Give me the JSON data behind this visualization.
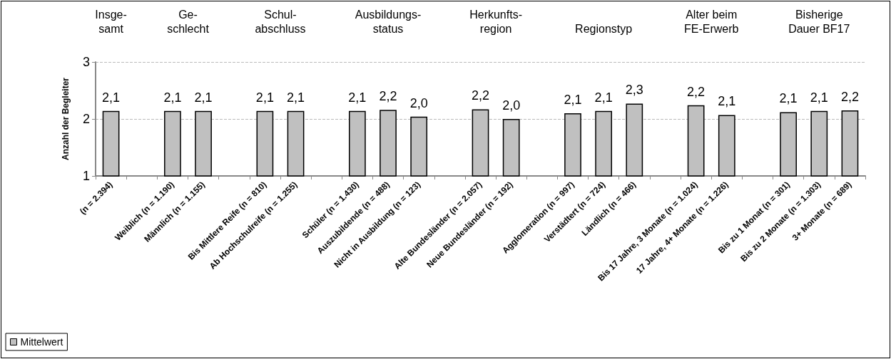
{
  "chart_data": {
    "type": "bar",
    "ylabel": "Anzahl der Begleiter",
    "categories": [
      "(n = 2.394)",
      null,
      "Weiblich (n = 1.190)",
      "Männlich (n = 1.155)",
      null,
      "Bis Mittlere Reife (n = 810)",
      "Ab Hochschulreife (n = 1.255)",
      null,
      "Schüler (n = 1.430)",
      "Auszubildende (n = 488)",
      "Nicht in Ausbildung (n = 123)",
      null,
      "Alte Bundesländer (n = 2.057)",
      "Neue Bundesländer (n = 192)",
      null,
      "Agglomeration (n = 997)",
      "Verstädtert (n = 724)",
      "Ländlich (n = 466)",
      null,
      "Bis 17 Jahre, 3 Monate (n = 1.024)",
      "17 Jahre, 4+ Monate (n = 1.226)",
      null,
      "Bis zu 1 Monat (n = 301)",
      "Bis zu 2 Monate (n = 1.303)",
      "3+ Monate (n = 689)"
    ],
    "series": [
      {
        "name": "Mittelwert",
        "color": "#c0c0c0",
        "values": [
          2.14,
          null,
          2.14,
          2.14,
          null,
          2.14,
          2.14,
          null,
          2.14,
          2.16,
          2.04,
          null,
          2.17,
          2.0,
          null,
          2.1,
          2.14,
          2.27,
          null,
          2.24,
          2.07,
          null,
          2.12,
          2.14,
          2.15
        ],
        "value_labels": [
          "2,1",
          null,
          "2,1",
          "2,1",
          null,
          "2,1",
          "2,1",
          null,
          "2,1",
          "2,2",
          "2,0",
          null,
          "2,2",
          "2,0",
          null,
          "2,1",
          "2,1",
          "2,3",
          null,
          "2,2",
          "2,1",
          null,
          "2,1",
          "2,1",
          "2,2"
        ]
      }
    ],
    "annotations": [
      "Insge-\nsamt",
      "Ge-\nschlecht",
      "Schul-\nabschluss",
      "Ausbildungs-\nstatus",
      "Herkunfts-\nregion",
      "Regionstyp",
      "Alter beim\nFE-Erwerb",
      "Bisherige\nDauer BF17"
    ],
    "ylim": [
      1,
      3
    ],
    "yticks": [
      1,
      2,
      3
    ],
    "grid": "y",
    "legend": "bottom left"
  }
}
